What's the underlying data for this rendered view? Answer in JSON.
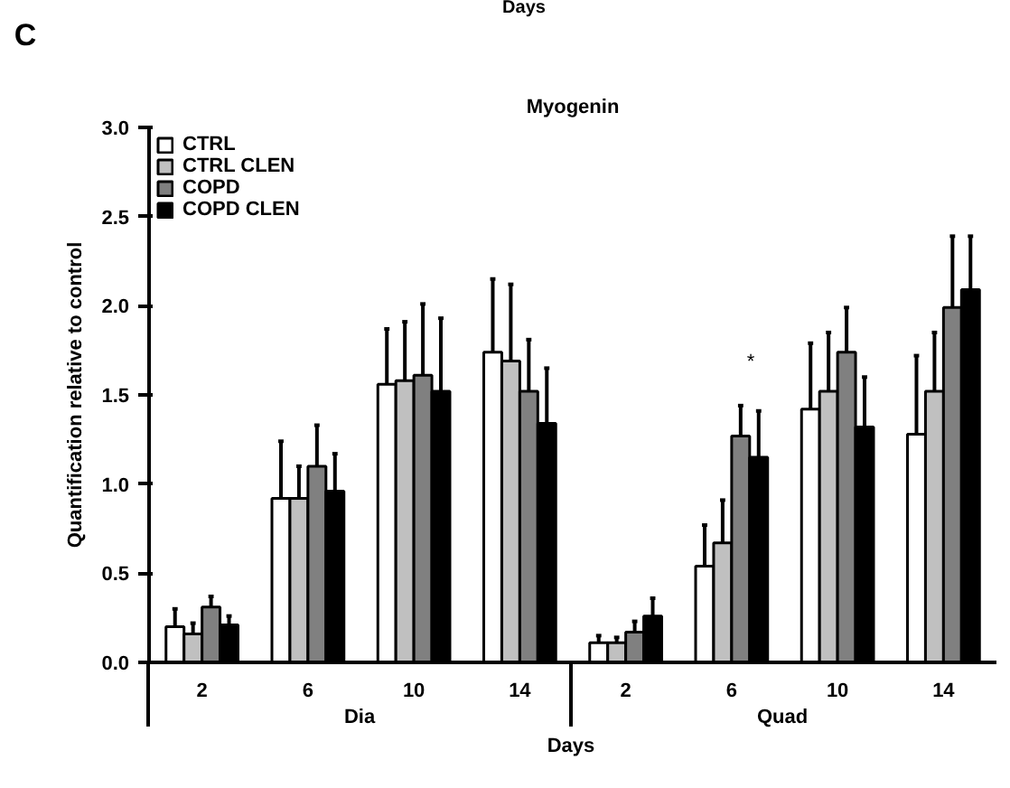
{
  "chart_data": {
    "type": "bar",
    "title": "Myogenin",
    "xlabel": "Days",
    "ylabel": "Quantification relative to control",
    "categories": [
      "2",
      "6",
      "10",
      "14",
      "2",
      "6",
      "10",
      "14"
    ],
    "series": [
      {
        "name": "CTRL",
        "color": "#ffffff",
        "values": [
          0.2,
          0.92,
          1.56,
          1.74,
          0.11,
          0.54,
          1.42,
          1.28
        ],
        "errors": [
          [
            0.2,
            0.3
          ],
          [
            0.92,
            1.24
          ],
          [
            1.56,
            1.87
          ],
          [
            1.74,
            2.15
          ],
          [
            0.11,
            0.15
          ],
          [
            0.54,
            0.77
          ],
          [
            1.42,
            1.79
          ],
          [
            1.28,
            1.72
          ]
        ]
      },
      {
        "name": "CTRL CLEN",
        "color": "#c0c0c0",
        "values": [
          0.16,
          0.92,
          1.58,
          1.69,
          0.11,
          0.67,
          1.52,
          1.52
        ],
        "errors": [
          [
            0.16,
            0.22
          ],
          [
            0.92,
            1.1
          ],
          [
            1.58,
            1.91
          ],
          [
            1.69,
            2.12
          ],
          [
            0.11,
            0.14
          ],
          [
            0.67,
            0.91
          ],
          [
            1.52,
            1.85
          ],
          [
            1.52,
            1.85
          ]
        ]
      },
      {
        "name": "COPD",
        "color": "#808080",
        "values": [
          0.31,
          1.1,
          1.61,
          1.52,
          0.17,
          1.27,
          1.74,
          1.99
        ],
        "errors": [
          [
            0.31,
            0.37
          ],
          [
            1.1,
            1.33
          ],
          [
            1.61,
            2.01
          ],
          [
            1.52,
            1.81
          ],
          [
            0.17,
            0.23
          ],
          [
            1.27,
            1.44
          ],
          [
            1.74,
            1.99
          ],
          [
            1.99,
            2.39
          ]
        ]
      },
      {
        "name": "COPD CLEN",
        "color": "#000000",
        "values": [
          0.21,
          0.96,
          1.52,
          1.34,
          0.26,
          1.15,
          1.32,
          2.09
        ],
        "errors": [
          [
            0.21,
            0.26
          ],
          [
            0.96,
            1.17
          ],
          [
            1.52,
            1.93
          ],
          [
            1.34,
            1.65
          ],
          [
            0.26,
            0.36
          ],
          [
            1.15,
            1.41
          ],
          [
            1.32,
            1.6
          ],
          [
            2.09,
            2.39
          ]
        ]
      }
    ],
    "ylim": [
      0,
      3.0
    ],
    "yticks": [
      {
        "value": 0,
        "label": "0.0"
      },
      {
        "value": 0.5,
        "label": "0.5"
      },
      {
        "value": 1,
        "label": "1.0"
      },
      {
        "value": 1.5,
        "label": "1.5"
      },
      {
        "value": 2,
        "label": "2.0"
      },
      {
        "value": 2.5,
        "label": "2.5"
      },
      {
        "value": 3,
        "label": "3.0"
      }
    ],
    "grid": false,
    "legend": "top left",
    "annotations": [
      "C",
      "Days",
      "Dia",
      "Quad",
      "*"
    ]
  }
}
